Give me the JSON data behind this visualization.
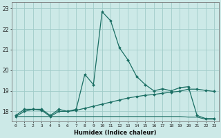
{
  "xlabel": "Humidex (Indice chaleur)",
  "bg_color": "#cce9e7",
  "grid_color": "#a0ccc9",
  "line_color": "#1a6e63",
  "xlim": [
    -0.5,
    23.5
  ],
  "ylim": [
    17.5,
    23.3
  ],
  "yticks": [
    18,
    19,
    20,
    21,
    22,
    23
  ],
  "xticks": [
    0,
    1,
    2,
    3,
    4,
    5,
    6,
    7,
    8,
    9,
    10,
    11,
    12,
    13,
    14,
    15,
    16,
    17,
    18,
    19,
    20,
    21,
    22,
    23
  ],
  "series1_x": [
    0,
    1,
    2,
    3,
    4,
    5,
    6,
    7,
    8,
    9,
    10,
    11,
    12,
    13,
    14,
    15,
    16,
    17,
    18,
    19,
    20,
    21,
    22,
    23
  ],
  "series1_y": [
    17.8,
    18.1,
    18.1,
    18.1,
    17.8,
    18.1,
    18.0,
    18.1,
    19.8,
    19.3,
    22.85,
    22.4,
    21.1,
    20.5,
    19.7,
    19.3,
    19.0,
    19.1,
    19.0,
    19.15,
    19.2,
    17.8,
    17.65,
    17.65
  ],
  "series2_x": [
    0,
    1,
    2,
    3,
    4,
    5,
    6,
    7,
    8,
    9,
    10,
    11,
    12,
    13,
    14,
    15,
    16,
    17,
    18,
    19,
    20,
    21,
    22,
    23
  ],
  "series2_y": [
    17.75,
    18.0,
    18.1,
    18.05,
    17.75,
    18.0,
    18.0,
    18.05,
    18.15,
    18.25,
    18.35,
    18.45,
    18.55,
    18.65,
    18.72,
    18.78,
    18.82,
    18.88,
    18.93,
    18.98,
    19.08,
    19.08,
    19.02,
    18.97
  ],
  "series3_x": [
    0,
    1,
    2,
    3,
    4,
    5,
    6,
    7,
    8,
    9,
    10,
    11,
    12,
    13,
    14,
    15,
    16,
    17,
    18,
    19,
    20,
    21,
    22,
    23
  ],
  "series3_y": [
    17.75,
    17.75,
    17.75,
    17.75,
    17.75,
    17.75,
    17.75,
    17.75,
    17.75,
    17.75,
    17.75,
    17.75,
    17.75,
    17.75,
    17.75,
    17.75,
    17.75,
    17.75,
    17.75,
    17.75,
    17.72,
    17.72,
    17.62,
    17.62
  ]
}
